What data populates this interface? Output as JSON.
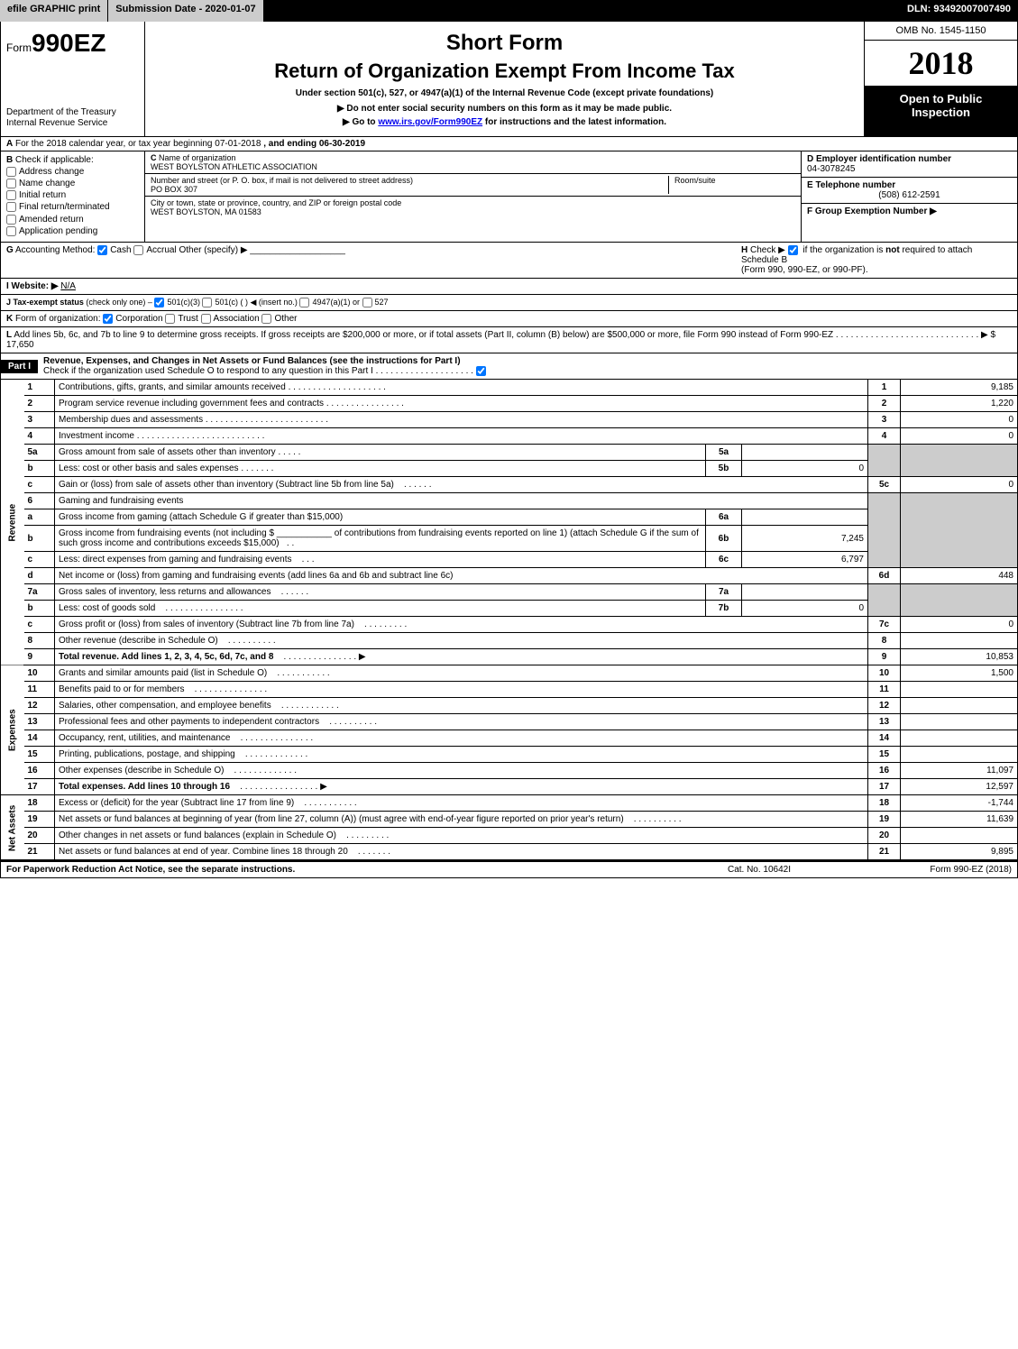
{
  "topbar": {
    "efile": "efile GRAPHIC print",
    "submission_label": "Submission Date - 2020-01-07",
    "dln": "DLN: 93492007007490"
  },
  "header": {
    "form_prefix": "Form",
    "form_number": "990EZ",
    "dept1": "Department of the Treasury",
    "dept2": "Internal Revenue Service",
    "title1": "Short Form",
    "title2": "Return of Organization Exempt From Income Tax",
    "sub1": "Under section 501(c), 527, or 4947(a)(1) of the Internal Revenue Code (except private foundations)",
    "sub2": "▶ Do not enter social security numbers on this form as it may be made public.",
    "sub3_pre": "▶ Go to ",
    "sub3_link": "www.irs.gov/Form990EZ",
    "sub3_post": " for instructions and the latest information.",
    "omb": "OMB No. 1545-1150",
    "year": "2018",
    "open_public1": "Open to Public",
    "open_public2": "Inspection"
  },
  "section_a": {
    "label_a": "A",
    "text": "For the 2018 calendar year, or tax year beginning 07-01-2018",
    "ending": ", and ending 06-30-2019"
  },
  "section_b": {
    "label": "B",
    "check_label": "Check if applicable:",
    "address_change": "Address change",
    "name_change": "Name change",
    "initial_return": "Initial return",
    "final_return": "Final return/terminated",
    "amended_return": "Amended return",
    "application_pending": "Application pending"
  },
  "section_c": {
    "label": "C",
    "name_label": "Name of organization",
    "name": "WEST BOYLSTON ATHLETIC ASSOCIATION",
    "street_label": "Number and street (or P. O. box, if mail is not delivered to street address)",
    "room_label": "Room/suite",
    "street": "PO BOX 307",
    "city_label": "City or town, state or province, country, and ZIP or foreign postal code",
    "city": "WEST BOYLSTON, MA  01583"
  },
  "section_d": {
    "label": "D Employer identification number",
    "ein": "04-3078245",
    "e_label": "E Telephone number",
    "phone": "(508) 612-2591",
    "f_label": "F Group Exemption Number  ▶"
  },
  "section_g": {
    "label": "G",
    "text": "Accounting Method:",
    "cash": "Cash",
    "accrual": "Accrual",
    "other": "Other (specify) ▶"
  },
  "section_h": {
    "label": "H",
    "text1": "Check ▶",
    "text2": "if the organization is ",
    "not": "not",
    "text3": " required to attach Schedule B",
    "text4": "(Form 990, 990-EZ, or 990-PF)."
  },
  "section_i": {
    "label": "I Website: ▶",
    "value": "N/A"
  },
  "section_j": {
    "label": "J Tax-exempt status",
    "note": "(check only one) –",
    "opt1": "501(c)(3)",
    "opt2": "501(c) (   ) ◀ (insert no.)",
    "opt3": "4947(a)(1) or",
    "opt4": "527"
  },
  "section_k": {
    "label": "K",
    "text": "Form of organization:",
    "corp": "Corporation",
    "trust": "Trust",
    "assoc": "Association",
    "other": "Other"
  },
  "section_l": {
    "label": "L",
    "text1": "Add lines 5b, 6c, and 7b to line 9 to determine gross receipts. If gross receipts are $200,000 or more, or if total assets (Part II, column (B) below) are $500,000 or more, file Form 990 instead of Form 990-EZ",
    "arrow": "▶ $ 17,650"
  },
  "part1": {
    "label": "Part I",
    "title": "Revenue, Expenses, and Changes in Net Assets or Fund Balances (see the instructions for Part I)",
    "check_text": "Check if the organization used Schedule O to respond to any question in this Part I"
  },
  "sidelabels": {
    "revenue": "Revenue",
    "expenses": "Expenses",
    "netassets": "Net Assets"
  },
  "lines": {
    "l1": {
      "num": "1",
      "desc": "Contributions, gifts, grants, and similar amounts received",
      "col": "1",
      "amt": "9,185"
    },
    "l2": {
      "num": "2",
      "desc": "Program service revenue including government fees and contracts",
      "col": "2",
      "amt": "1,220"
    },
    "l3": {
      "num": "3",
      "desc": "Membership dues and assessments",
      "col": "3",
      "amt": "0"
    },
    "l4": {
      "num": "4",
      "desc": "Investment income",
      "col": "4",
      "amt": "0"
    },
    "l5a": {
      "num": "5a",
      "desc": "Gross amount from sale of assets other than inventory",
      "sub": "5a",
      "subval": ""
    },
    "l5b": {
      "num": "b",
      "desc": "Less: cost or other basis and sales expenses",
      "sub": "5b",
      "subval": "0"
    },
    "l5c": {
      "num": "c",
      "desc": "Gain or (loss) from sale of assets other than inventory (Subtract line 5b from line 5a)",
      "col": "5c",
      "amt": "0"
    },
    "l6": {
      "num": "6",
      "desc": "Gaming and fundraising events"
    },
    "l6a": {
      "num": "a",
      "desc": "Gross income from gaming (attach Schedule G if greater than $15,000)",
      "sub": "6a",
      "subval": ""
    },
    "l6b": {
      "num": "b",
      "desc_pre": "Gross income from fundraising events (not including $ ",
      "desc_post": " of contributions from fundraising events reported on line 1) (attach Schedule G if the sum of such gross income and contributions exceeds $15,000)",
      "sub": "6b",
      "subval": "7,245"
    },
    "l6c": {
      "num": "c",
      "desc": "Less: direct expenses from gaming and fundraising events",
      "sub": "6c",
      "subval": "6,797"
    },
    "l6d": {
      "num": "d",
      "desc": "Net income or (loss) from gaming and fundraising events (add lines 6a and 6b and subtract line 6c)",
      "col": "6d",
      "amt": "448"
    },
    "l7a": {
      "num": "7a",
      "desc": "Gross sales of inventory, less returns and allowances",
      "sub": "7a",
      "subval": ""
    },
    "l7b": {
      "num": "b",
      "desc": "Less: cost of goods sold",
      "sub": "7b",
      "subval": "0"
    },
    "l7c": {
      "num": "c",
      "desc": "Gross profit or (loss) from sales of inventory (Subtract line 7b from line 7a)",
      "col": "7c",
      "amt": "0"
    },
    "l8": {
      "num": "8",
      "desc": "Other revenue (describe in Schedule O)",
      "col": "8",
      "amt": ""
    },
    "l9": {
      "num": "9",
      "desc": "Total revenue. Add lines 1, 2, 3, 4, 5c, 6d, 7c, and 8",
      "arrow": "▶",
      "col": "9",
      "amt": "10,853"
    },
    "l10": {
      "num": "10",
      "desc": "Grants and similar amounts paid (list in Schedule O)",
      "col": "10",
      "amt": "1,500"
    },
    "l11": {
      "num": "11",
      "desc": "Benefits paid to or for members",
      "col": "11",
      "amt": ""
    },
    "l12": {
      "num": "12",
      "desc": "Salaries, other compensation, and employee benefits",
      "col": "12",
      "amt": ""
    },
    "l13": {
      "num": "13",
      "desc": "Professional fees and other payments to independent contractors",
      "col": "13",
      "amt": ""
    },
    "l14": {
      "num": "14",
      "desc": "Occupancy, rent, utilities, and maintenance",
      "col": "14",
      "amt": ""
    },
    "l15": {
      "num": "15",
      "desc": "Printing, publications, postage, and shipping",
      "col": "15",
      "amt": ""
    },
    "l16": {
      "num": "16",
      "desc": "Other expenses (describe in Schedule O)",
      "col": "16",
      "amt": "11,097"
    },
    "l17": {
      "num": "17",
      "desc": "Total expenses. Add lines 10 through 16",
      "arrow": "▶",
      "col": "17",
      "amt": "12,597"
    },
    "l18": {
      "num": "18",
      "desc": "Excess or (deficit) for the year (Subtract line 17 from line 9)",
      "col": "18",
      "amt": "-1,744"
    },
    "l19": {
      "num": "19",
      "desc": "Net assets or fund balances at beginning of year (from line 27, column (A)) (must agree with end-of-year figure reported on prior year's return)",
      "col": "19",
      "amt": "11,639"
    },
    "l20": {
      "num": "20",
      "desc": "Other changes in net assets or fund balances (explain in Schedule O)",
      "col": "20",
      "amt": ""
    },
    "l21": {
      "num": "21",
      "desc": "Net assets or fund balances at end of year. Combine lines 18 through 20",
      "col": "21",
      "amt": "9,895"
    }
  },
  "footer": {
    "left": "For Paperwork Reduction Act Notice, see the separate instructions.",
    "mid": "Cat. No. 10642I",
    "right": "Form 990-EZ (2018)"
  },
  "colors": {
    "black": "#000000",
    "grey": "#cccccc",
    "white": "#ffffff",
    "link": "#0000ee"
  }
}
